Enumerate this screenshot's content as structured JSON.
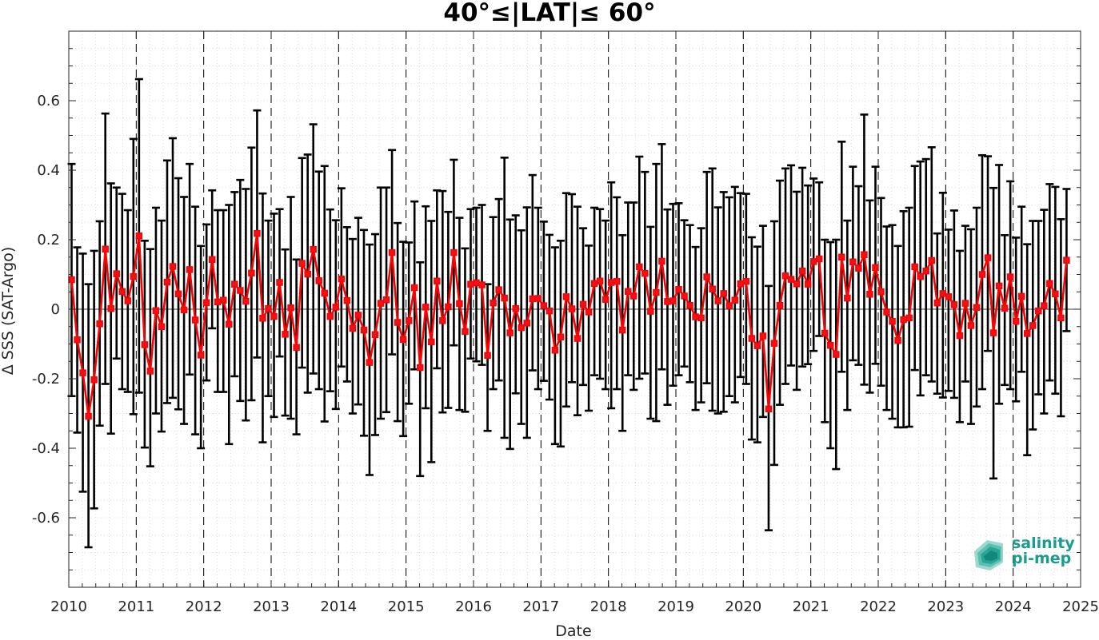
{
  "colors": {
    "line": "#ff0000",
    "marker": "#e8141c",
    "errorbar": "#000000",
    "grid": "#dcdcdc",
    "brand": "#1a9c8f"
  },
  "logo": {
    "line1": "salinity",
    "line2": "pi-mep"
  },
  "chart_data": {
    "type": "line",
    "title": "40°≤|LAT|≤ 60°",
    "xlabel": "Date",
    "ylabel": "Δ SSS (SAT-Argo)",
    "xlim": [
      2010,
      2025
    ],
    "ylim": [
      -0.8,
      0.8
    ],
    "x_ticks": [
      "2010",
      "2011",
      "2012",
      "2013",
      "2014",
      "2015",
      "2016",
      "2017",
      "2018",
      "2019",
      "2020",
      "2021",
      "2022",
      "2023",
      "2024",
      "2025"
    ],
    "y_ticks": [
      "-0.6",
      "-0.4",
      "-0.2",
      "0",
      "0.2",
      "0.4",
      "0.6"
    ],
    "y_tick_values": [
      -0.6,
      -0.4,
      -0.2,
      0,
      0.2,
      0.4,
      0.6
    ],
    "grid": "minor dotted",
    "year_separators": "dashed vertical lines at each year",
    "series": [
      {
        "x_start": "2010-01",
        "x_step": "1 month",
        "mean": [
          0.085,
          -0.088,
          -0.183,
          -0.308,
          -0.203,
          -0.042,
          0.173,
          0.002,
          0.102,
          0.051,
          0.024,
          0.094,
          0.211,
          -0.102,
          -0.178,
          -0.004,
          -0.05,
          0.078,
          0.123,
          0.044,
          -0.002,
          0.114,
          -0.031,
          -0.132,
          0.019,
          0.143,
          0.021,
          0.026,
          -0.043,
          0.072,
          0.054,
          0.023,
          0.104,
          0.218,
          -0.026,
          0.002,
          -0.021,
          0.077,
          -0.072,
          0.004,
          -0.11,
          0.132,
          0.101,
          0.172,
          0.082,
          0.046,
          -0.021,
          0.006,
          0.087,
          0.025,
          -0.055,
          -0.017,
          -0.06,
          -0.153,
          -0.073,
          0.017,
          0.027,
          0.163,
          -0.038,
          -0.087,
          -0.033,
          0.062,
          -0.168,
          0.006,
          -0.094,
          0.081,
          -0.033,
          0.007,
          0.163,
          0.016,
          -0.064,
          0.072,
          0.076,
          0.07,
          -0.133,
          0.018,
          0.056,
          0.032,
          -0.068,
          0.002,
          -0.053,
          -0.04,
          0.03,
          0.031,
          0.01,
          -0.005,
          -0.118,
          -0.08,
          0.036,
          0.001,
          -0.084,
          0.014,
          -0.008,
          0.074,
          0.081,
          0.028,
          0.077,
          0.08,
          -0.06,
          0.051,
          0.038,
          0.122,
          0.103,
          -0.006,
          0.048,
          0.138,
          0.022,
          0.024,
          0.057,
          0.038,
          0.011,
          -0.022,
          -0.025,
          0.093,
          0.058,
          0.024,
          0.045,
          0.01,
          0.026,
          0.073,
          0.08,
          -0.084,
          -0.105,
          -0.077,
          -0.287,
          -0.098,
          0.011,
          0.096,
          0.086,
          0.073,
          0.11,
          0.072,
          0.137,
          0.145,
          -0.069,
          -0.104,
          -0.13,
          0.15,
          0.032,
          0.136,
          0.118,
          0.157,
          0.043,
          0.12,
          0.05,
          -0.008,
          -0.035,
          -0.09,
          -0.03,
          -0.025,
          0.122,
          0.094,
          0.11,
          0.14,
          0.018,
          0.045,
          0.036,
          0.013,
          -0.076,
          0.017,
          -0.047,
          0.005,
          0.1,
          0.148,
          -0.068,
          0.067,
          0.003,
          0.093,
          -0.035,
          0.037,
          -0.07,
          -0.047,
          -0.005,
          0.01,
          0.074,
          0.044,
          -0.025,
          0.141
        ],
        "upper": [
          0.418,
          0.178,
          0.16,
          0.072,
          0.168,
          0.253,
          0.563,
          0.362,
          0.35,
          0.332,
          0.285,
          0.49,
          0.662,
          0.197,
          0.173,
          0.292,
          0.255,
          0.428,
          0.492,
          0.377,
          0.323,
          0.418,
          0.295,
          0.182,
          0.244,
          0.342,
          0.285,
          0.285,
          0.3,
          0.337,
          0.372,
          0.346,
          0.465,
          0.572,
          0.333,
          0.255,
          0.275,
          0.288,
          0.172,
          0.323,
          0.143,
          0.435,
          0.445,
          0.532,
          0.396,
          0.412,
          0.287,
          0.256,
          0.348,
          0.236,
          0.202,
          0.263,
          0.228,
          0.186,
          0.216,
          0.35,
          0.35,
          0.458,
          0.248,
          0.194,
          0.192,
          0.31,
          0.135,
          0.296,
          0.254,
          0.342,
          0.34,
          0.28,
          0.43,
          0.263,
          0.175,
          0.288,
          0.292,
          0.3,
          0.072,
          0.265,
          0.317,
          0.436,
          0.258,
          0.27,
          0.227,
          0.293,
          0.386,
          0.292,
          0.252,
          0.214,
          0.178,
          0.197,
          0.334,
          0.331,
          0.295,
          0.233,
          0.183,
          0.292,
          0.288,
          0.255,
          0.365,
          0.322,
          0.213,
          0.307,
          0.307,
          0.439,
          0.395,
          0.237,
          0.418,
          0.475,
          0.287,
          0.303,
          0.305,
          0.256,
          0.242,
          0.179,
          0.233,
          0.395,
          0.405,
          0.293,
          0.337,
          0.322,
          0.352,
          0.334,
          0.332,
          0.207,
          0.18,
          0.24,
          0.067,
          0.253,
          0.37,
          0.405,
          0.414,
          0.338,
          0.407,
          0.356,
          0.376,
          0.365,
          0.2,
          0.193,
          0.2,
          0.482,
          0.255,
          0.41,
          0.354,
          0.56,
          0.313,
          0.41,
          0.32,
          0.238,
          0.242,
          0.182,
          0.282,
          0.292,
          0.412,
          0.425,
          0.432,
          0.466,
          0.218,
          0.335,
          0.229,
          0.284,
          0.168,
          0.24,
          0.23,
          0.292,
          0.443,
          0.44,
          0.349,
          0.415,
          0.213,
          0.368,
          0.206,
          0.295,
          0.187,
          0.254,
          0.254,
          0.286,
          0.36,
          0.352,
          0.259,
          0.346
        ],
        "lower": [
          -0.25,
          -0.355,
          -0.525,
          -0.685,
          -0.573,
          -0.335,
          -0.215,
          -0.358,
          -0.142,
          -0.23,
          -0.238,
          -0.302,
          -0.24,
          -0.398,
          -0.452,
          -0.3,
          -0.352,
          -0.27,
          -0.255,
          -0.288,
          -0.33,
          -0.188,
          -0.36,
          -0.4,
          -0.205,
          -0.055,
          -0.238,
          -0.238,
          -0.388,
          -0.193,
          -0.264,
          -0.32,
          -0.262,
          -0.139,
          -0.383,
          -0.25,
          -0.31,
          -0.136,
          -0.306,
          -0.315,
          -0.36,
          -0.168,
          -0.24,
          -0.185,
          -0.23,
          -0.323,
          -0.236,
          -0.287,
          -0.165,
          -0.208,
          -0.3,
          -0.274,
          -0.364,
          -0.477,
          -0.362,
          -0.315,
          -0.296,
          -0.13,
          -0.322,
          -0.365,
          -0.272,
          -0.173,
          -0.48,
          -0.285,
          -0.44,
          -0.17,
          -0.297,
          -0.284,
          -0.104,
          -0.29,
          -0.295,
          -0.142,
          -0.15,
          -0.16,
          -0.35,
          -0.23,
          -0.205,
          -0.37,
          -0.402,
          -0.242,
          -0.33,
          -0.37,
          -0.176,
          -0.23,
          -0.206,
          -0.26,
          -0.388,
          -0.395,
          -0.28,
          -0.21,
          -0.305,
          -0.218,
          -0.292,
          -0.19,
          -0.2,
          -0.23,
          -0.285,
          -0.23,
          -0.35,
          -0.19,
          -0.232,
          -0.2,
          -0.185,
          -0.315,
          -0.322,
          -0.173,
          -0.275,
          -0.22,
          -0.19,
          -0.165,
          -0.21,
          -0.29,
          -0.268,
          -0.213,
          -0.292,
          -0.3,
          -0.295,
          -0.25,
          -0.268,
          -0.195,
          -0.215,
          -0.375,
          -0.383,
          -0.31,
          -0.636,
          -0.448,
          -0.275,
          -0.215,
          -0.162,
          -0.232,
          -0.165,
          -0.158,
          -0.12,
          -0.077,
          -0.325,
          -0.4,
          -0.46,
          -0.18,
          -0.29,
          -0.147,
          -0.16,
          -0.217,
          -0.24,
          -0.157,
          -0.22,
          -0.29,
          -0.315,
          -0.34,
          -0.34,
          -0.338,
          -0.175,
          -0.248,
          -0.19,
          -0.208,
          -0.243,
          -0.254,
          -0.235,
          -0.255,
          -0.325,
          -0.208,
          -0.33,
          -0.28,
          -0.23,
          -0.12,
          -0.487,
          -0.272,
          -0.218,
          -0.23,
          -0.265,
          -0.18,
          -0.42,
          -0.346,
          -0.245,
          -0.3,
          -0.205,
          -0.243,
          -0.308,
          -0.063
        ]
      }
    ]
  }
}
